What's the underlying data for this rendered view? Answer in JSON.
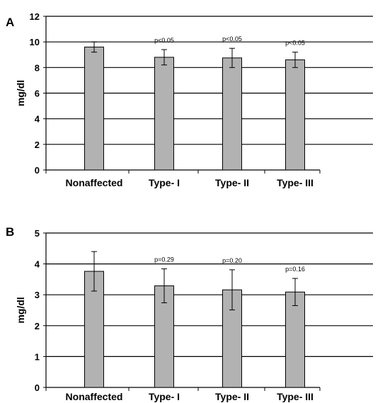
{
  "chart_data": [
    {
      "panel": "A",
      "type": "bar",
      "categories": [
        "Nonaffected",
        "Type- I",
        "Type- II",
        "Type- III"
      ],
      "values": [
        9.6,
        8.8,
        8.75,
        8.6
      ],
      "error": [
        0.4,
        0.6,
        0.75,
        0.6
      ],
      "annotations": [
        "",
        "p<0.05",
        "p<0.05",
        "p<0.05"
      ],
      "ylabel": "mg/dl",
      "xlabel": "",
      "ylim": [
        0,
        12
      ],
      "yticks": [
        "0",
        "2",
        "4",
        "6",
        "8",
        "10",
        "12"
      ],
      "grid": true,
      "bar_color": "#b2b2b2"
    },
    {
      "panel": "B",
      "type": "bar",
      "categories": [
        "Nonaffected",
        "Type- I",
        "Type- II",
        "Type- III"
      ],
      "values": [
        3.76,
        3.29,
        3.16,
        3.09
      ],
      "error": [
        0.64,
        0.55,
        0.65,
        0.44
      ],
      "annotations": [
        "",
        "p=0.29",
        "p=0.20",
        "p=0.16"
      ],
      "ylabel": "mg/dl",
      "xlabel": "",
      "ylim": [
        0,
        5
      ],
      "yticks": [
        "0",
        "1",
        "2",
        "3",
        "4",
        "5"
      ],
      "grid": true,
      "bar_color": "#b2b2b2"
    }
  ]
}
